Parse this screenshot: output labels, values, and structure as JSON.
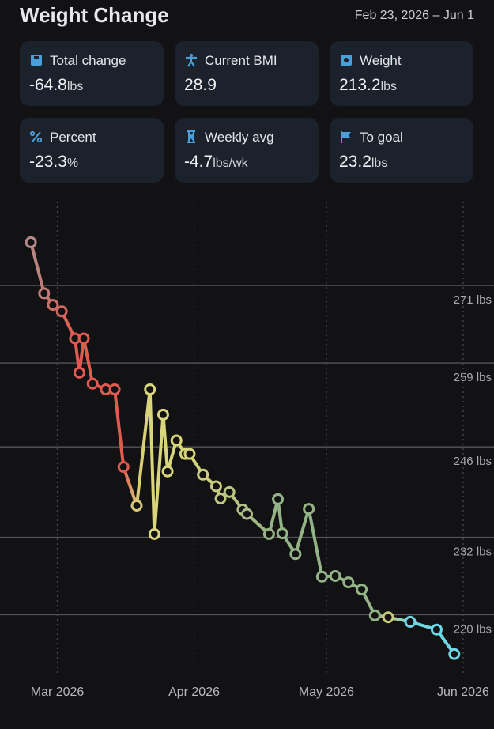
{
  "header": {
    "title": "Weight Change",
    "date_range": "Feb 23, 2026 – Jun 1"
  },
  "cards": [
    {
      "label": "Total change",
      "value": "-64.8",
      "unit": "lbs"
    },
    {
      "label": "Current BMI",
      "value": "28.9"
    },
    {
      "label": "Weight",
      "value": "213.2",
      "unit": "lbs"
    },
    {
      "label": "Percent",
      "value": "-23.3",
      "unit": "%"
    },
    {
      "label": "Weekly avg",
      "value": "-4.7",
      "unit": "lbs/wk"
    },
    {
      "label": "To goal",
      "value": "23.2",
      "unit": "lbs"
    }
  ],
  "chart_data": {
    "type": "line",
    "x": [
      "2026-02-23",
      "2026-02-26",
      "2026-02-28",
      "2026-03-02",
      "2026-03-05",
      "2026-03-06",
      "2026-03-07",
      "2026-03-09",
      "2026-03-12",
      "2026-03-14",
      "2026-03-16",
      "2026-03-19",
      "2026-03-22",
      "2026-03-23",
      "2026-03-25",
      "2026-03-26",
      "2026-03-28",
      "2026-03-30",
      "2026-03-31",
      "2026-04-03",
      "2026-04-06",
      "2026-04-07",
      "2026-04-09",
      "2026-04-12",
      "2026-04-13",
      "2026-04-18",
      "2026-04-20",
      "2026-04-21",
      "2026-04-24",
      "2026-04-27",
      "2026-04-30",
      "2026-05-03",
      "2026-05-06",
      "2026-05-09",
      "2026-05-12",
      "2026-05-15",
      "2026-05-20",
      "2026-05-26",
      "2026-05-30"
    ],
    "series": [
      {
        "values": [
          277.7,
          269.8,
          268.0,
          267.0,
          262.8,
          257.5,
          262.8,
          255.8,
          254.9,
          254.9,
          242.9,
          236.9,
          254.9,
          232.5,
          251.0,
          242.2,
          247.0,
          244.9,
          244.9,
          241.7,
          239.9,
          238.0,
          239.0,
          236.3,
          235.6,
          232.5,
          237.9,
          232.6,
          229.4,
          236.4,
          225.9,
          226.0,
          225.0,
          223.9,
          219.9,
          219.6,
          218.9,
          217.7,
          213.9
        ],
        "colors": [
          "#b58a86",
          "#c07c75",
          "#c9736a",
          "#d3675d",
          "#e25a4f",
          "#e25a4f",
          "#e25a4f",
          "#e25a4f",
          "#e25a4f",
          "#e25a4f",
          "#e25a4f",
          "#d9c878",
          "#d9d57a",
          "#d9d57a",
          "#d9d57a",
          "#d9d57a",
          "#d9d57a",
          "#d6d47c",
          "#d4d37d",
          "#cfd07f",
          "#c8cc80",
          "#c2c882",
          "#bcc583",
          "#b2bf84",
          "#a8ba85",
          "#98b487",
          "#94b487",
          "#94b487",
          "#94b487",
          "#94b487",
          "#94b487",
          "#94b487",
          "#94b487",
          "#94b487",
          "#94b487",
          "#c9c97a",
          "#6fd6e4",
          "#6fd6e4",
          "#6fd6e4"
        ]
      }
    ],
    "xlim": [
      "2026-02-16",
      "2026-06-08"
    ],
    "xticks": [
      {
        "value": "2026-03-01",
        "label": "Mar 2026"
      },
      {
        "value": "2026-04-01",
        "label": "Apr 2026"
      },
      {
        "value": "2026-05-01",
        "label": "May 2026"
      },
      {
        "value": "2026-06-01",
        "label": "Jun 2026"
      }
    ],
    "ylim": [
      210.5,
      284
    ],
    "yticks": [
      {
        "value": 271,
        "label": "271 lbs"
      },
      {
        "value": 259,
        "label": "259 lbs"
      },
      {
        "value": 246,
        "label": "246 lbs"
      },
      {
        "value": 232,
        "label": "232 lbs"
      },
      {
        "value": 220,
        "label": "220 lbs"
      }
    ],
    "grid": true
  }
}
